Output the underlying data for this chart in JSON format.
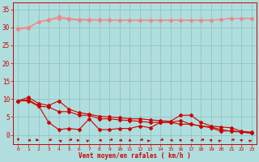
{
  "xlabel": "Vent moyen/en rafales ( km/h )",
  "xlabel_color": "#cc0000",
  "background_color": "#b0dede",
  "grid_color": "#90c4c4",
  "x_ticks": [
    0,
    1,
    2,
    3,
    4,
    5,
    6,
    7,
    8,
    9,
    10,
    11,
    12,
    13,
    14,
    15,
    16,
    17,
    18,
    19,
    20,
    21,
    22,
    23
  ],
  "y_ticks": [
    0,
    5,
    10,
    15,
    20,
    25,
    30,
    35
  ],
  "ylim": [
    -2.5,
    37
  ],
  "xlim": [
    -0.5,
    23.5
  ],
  "line1_x": [
    0,
    1,
    2,
    3,
    4,
    5,
    6,
    7,
    8,
    9,
    10,
    11,
    12,
    13,
    14,
    15,
    16,
    17,
    18,
    19,
    20,
    21,
    22,
    23
  ],
  "line1_y": [
    29.5,
    29.8,
    31.5,
    32.0,
    32.5,
    32.2,
    32.0,
    32.0,
    32.0,
    32.0,
    32.0,
    32.0,
    32.0,
    32.0,
    32.0,
    32.0,
    32.0,
    32.0,
    32.0,
    32.0,
    32.2,
    32.5,
    32.5,
    32.5
  ],
  "line2_x": [
    0,
    1,
    2,
    3,
    4,
    5,
    6,
    7,
    8,
    9,
    10,
    11,
    12,
    13,
    14,
    15,
    16,
    17,
    18,
    19,
    20,
    21,
    22,
    23
  ],
  "line2_y": [
    29.8,
    30.0,
    31.5,
    32.2,
    33.0,
    32.5,
    32.2,
    32.2,
    32.1,
    32.1,
    32.0,
    32.0,
    32.0,
    32.0,
    32.0,
    32.0,
    32.0,
    32.0,
    32.0,
    32.0,
    32.2,
    32.5,
    32.5,
    32.5
  ],
  "line3_x": [
    0,
    1,
    2,
    3,
    4,
    5,
    6,
    7,
    8,
    9,
    10,
    11,
    12,
    13,
    14,
    15,
    16,
    17,
    18,
    19,
    20,
    21,
    22,
    23
  ],
  "line3_y": [
    9.5,
    10.5,
    8.8,
    8.2,
    9.5,
    7.2,
    6.2,
    5.8,
    5.2,
    5.0,
    4.8,
    4.5,
    4.5,
    4.2,
    4.0,
    3.8,
    5.5,
    5.5,
    3.5,
    2.5,
    2.2,
    2.0,
    1.0,
    0.8
  ],
  "line4_x": [
    0,
    1,
    2,
    3,
    4,
    5,
    6,
    7,
    8,
    9,
    10,
    11,
    12,
    13,
    14,
    15,
    16,
    17,
    18,
    19,
    20,
    21,
    22,
    23
  ],
  "line4_y": [
    9.5,
    9.8,
    8.2,
    3.5,
    1.5,
    1.8,
    1.5,
    4.5,
    1.5,
    1.5,
    1.8,
    1.8,
    2.5,
    2.0,
    3.5,
    3.5,
    3.0,
    3.0,
    2.5,
    2.0,
    1.0,
    1.2,
    0.8,
    0.5
  ],
  "line5_x": [
    0,
    1,
    2,
    3,
    4,
    5,
    6,
    7,
    8,
    9,
    10,
    11,
    12,
    13,
    14,
    15,
    16,
    17,
    18,
    19,
    20,
    21,
    22,
    23
  ],
  "line5_y": [
    9.5,
    9.5,
    8.0,
    7.8,
    6.5,
    6.5,
    5.5,
    5.5,
    4.5,
    4.5,
    4.2,
    4.0,
    3.8,
    3.5,
    3.5,
    3.5,
    4.0,
    3.0,
    2.5,
    2.2,
    1.5,
    1.0,
    0.8,
    0.5
  ],
  "arrow_dirs": [
    180,
    265,
    125,
    230,
    315,
    225,
    85,
    50,
    270,
    225,
    270,
    140,
    225,
    50,
    225,
    265,
    320,
    265,
    225,
    320,
    50,
    225,
    320,
    50
  ],
  "line_color_light": "#ee8888",
  "line_color_dark": "#cc0000",
  "markersize": 2.0,
  "linewidth": 0.8
}
